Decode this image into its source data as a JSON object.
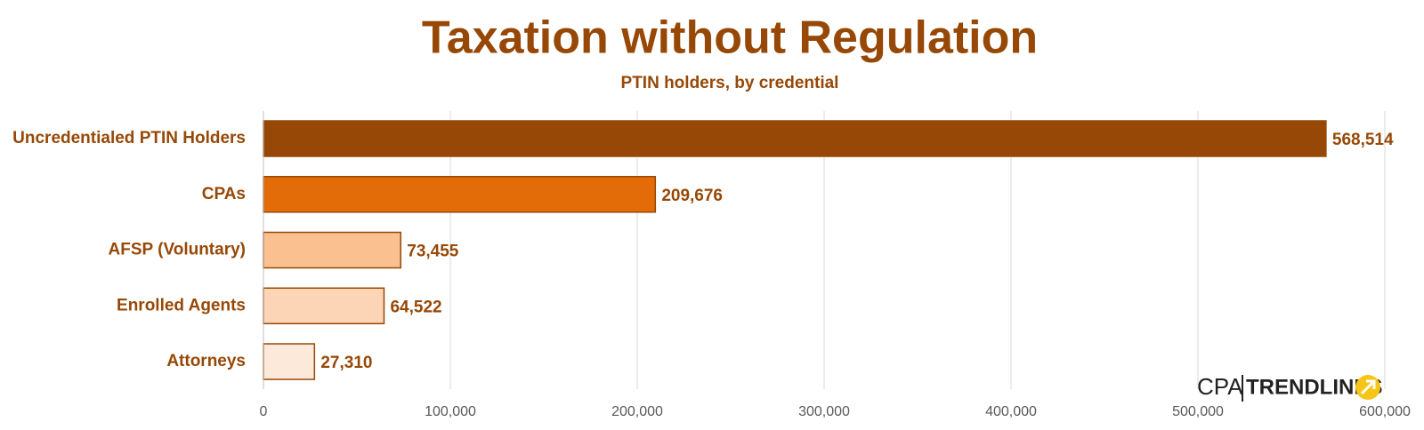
{
  "chart_data": {
    "type": "hbar",
    "title": "Taxation without Regulation",
    "subtitle": "PTIN holders, by credential",
    "categories": [
      "Uncredentialed PTIN Holders",
      "CPAs",
      "AFSP (Voluntary)",
      "Enrolled Agents",
      "Attorneys"
    ],
    "values": [
      568514,
      209676,
      73455,
      64522,
      27310
    ],
    "value_labels": [
      "568,514",
      "209,676",
      "73,455",
      "64,522",
      "27,310"
    ],
    "colors": [
      "#974806",
      "#e36c09",
      "#fac090",
      "#fbd5b5",
      "#fde9d9"
    ],
    "xlim": [
      0,
      600000
    ],
    "xticks": [
      0,
      {
        "value": 100000,
        "label": "100,000"
      },
      {
        "value": 200000,
        "label": "200,000"
      },
      {
        "value": 300000,
        "label": "300,000"
      },
      {
        "value": 400000,
        "label": "400,000"
      },
      {
        "value": 500000,
        "label": "500,000"
      },
      {
        "value": 600000,
        "label": "600,000"
      }
    ],
    "grid": true,
    "logo": [
      "CPA",
      "TRENDLINES"
    ]
  }
}
